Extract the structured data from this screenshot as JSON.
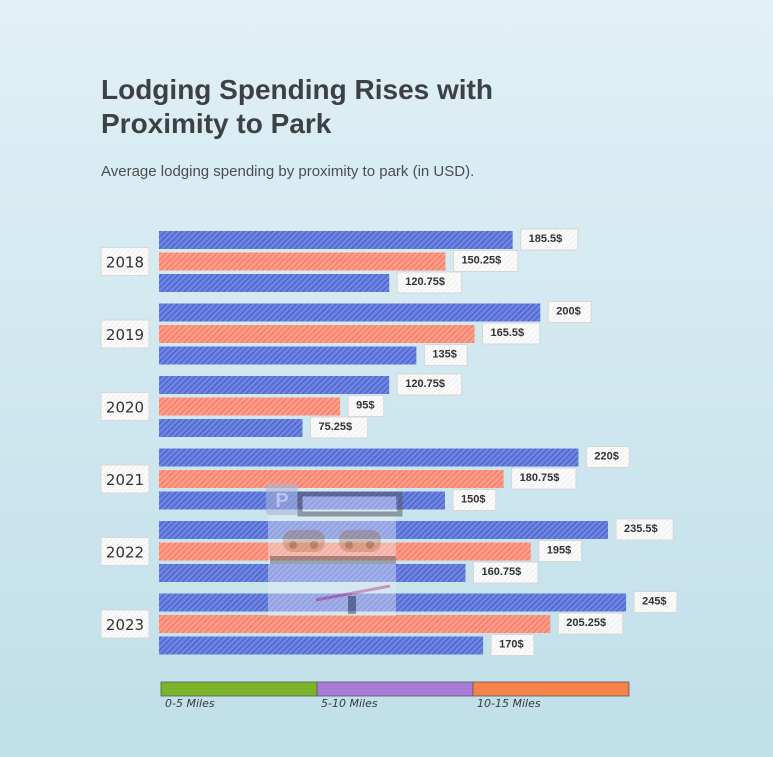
{
  "header": {
    "title": "Lodging Spending Rises with Proximity to Park",
    "subtitle": "Average lodging spending by proximity to park (in USD)."
  },
  "chart_data": {
    "type": "bar",
    "orientation": "horizontal",
    "title": "Lodging Spending Rises with Proximity to Park",
    "subtitle": "Average lodging spending by proximity to park (in USD).",
    "categories": [
      "2018",
      "2019",
      "2020",
      "2021",
      "2022",
      "2023"
    ],
    "series": [
      {
        "name": "0-5 Miles",
        "values": [
          185.5,
          200,
          120.75,
          220,
          235.5,
          245
        ],
        "labels": [
          "185.5$",
          "200$",
          "120.75$",
          "220$",
          "235.5$",
          "245$"
        ]
      },
      {
        "name": "5-10 Miles",
        "values": [
          150.25,
          165.5,
          95,
          180.75,
          195,
          205.25
        ],
        "labels": [
          "150.25$",
          "165.5$",
          "95$",
          "180.75$",
          "195$",
          "205.25$"
        ]
      },
      {
        "name": "10-15 Miles",
        "values": [
          120.75,
          135,
          75.25,
          150,
          160.75,
          170
        ],
        "labels": [
          "120.75$",
          "135$",
          "75.25$",
          "150$",
          "160.75$",
          "170$"
        ]
      }
    ],
    "legend": {
      "placement": "bottom",
      "items": [
        {
          "name": "0-5 Miles",
          "color": "#7bb42b"
        },
        {
          "name": "5-10 Miles",
          "color": "#a77bd6"
        },
        {
          "name": "10-15 Miles",
          "color": "#f6834a"
        }
      ]
    },
    "bar_colors": [
      "#5a72d8",
      "#fa8a74",
      "#5a72d8"
    ],
    "grid": false,
    "decoration": "parking-lot-icon"
  }
}
